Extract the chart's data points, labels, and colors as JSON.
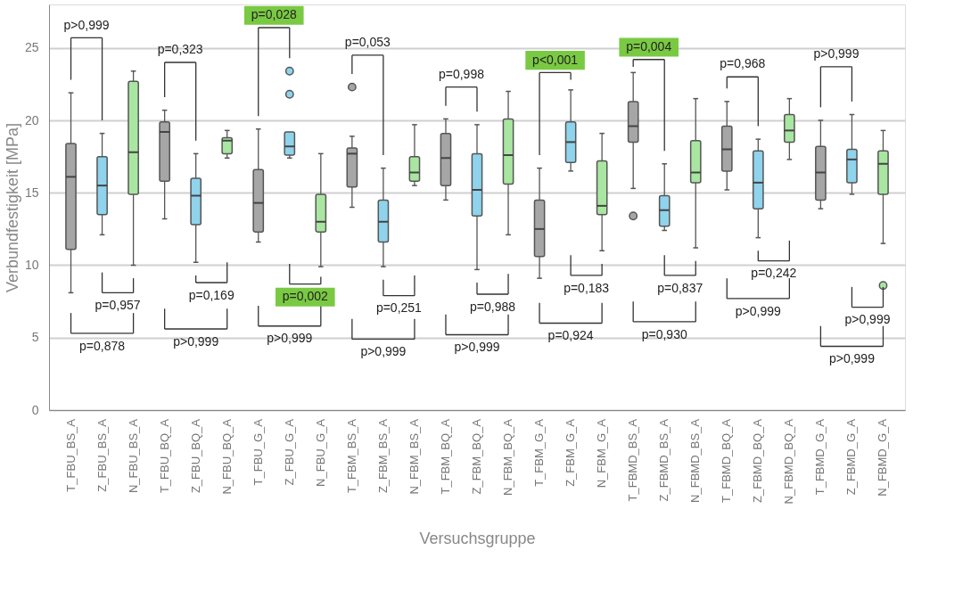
{
  "chart_data": {
    "type": "box",
    "xlabel": "Versuchsgruppe",
    "ylabel": "Verbundfestigkeit [MPa]",
    "categories": [
      "T_FBU_BS_A",
      "Z_FBU_BS_A",
      "N_FBU_BS_A",
      "T_FBU_BQ_A",
      "Z_FBU_BQ_A",
      "N_FBU_BQ_A",
      "T_FBU_G_A",
      "Z_FBU_G_A",
      "N_FBU_G_A",
      "T_FBM_BS_A",
      "Z_FBM_BS_A",
      "N_FBM_BS_A",
      "T_FBM_BQ_A",
      "Z_FBM_BQ_A",
      "N_FBM_BQ_A",
      "T_FBM_G_A",
      "Z_FBM_G_A",
      "N_FBM_G_A",
      "T_FBMD_BS_A",
      "Z_FBMD_BS_A",
      "N_FBMD_BS_A",
      "T_FBMD_BQ_A",
      "Z_FBMD_BQ_A",
      "N_FBMD_BQ_A",
      "T_FBMD_G_A",
      "Z_FBMD_G_A",
      "N_FBMD_G_A"
    ],
    "colors": [
      "#a6a6a6",
      "#8fd3ec",
      "#a9e6a1",
      "#a6a6a6",
      "#8fd3ec",
      "#a9e6a1",
      "#a6a6a6",
      "#8fd3ec",
      "#a9e6a1",
      "#a6a6a6",
      "#8fd3ec",
      "#a9e6a1",
      "#a6a6a6",
      "#8fd3ec",
      "#a9e6a1",
      "#a6a6a6",
      "#8fd3ec",
      "#a9e6a1",
      "#a6a6a6",
      "#8fd3ec",
      "#a9e6a1",
      "#a6a6a6",
      "#8fd3ec",
      "#a9e6a1",
      "#a6a6a6",
      "#8fd3ec",
      "#a9e6a1"
    ],
    "boxes": [
      {
        "low": 8.1,
        "q1": 11.1,
        "median": 16.1,
        "q3": 18.4,
        "high": 21.9
      },
      {
        "low": 12.1,
        "q1": 13.5,
        "median": 15.5,
        "q3": 17.5,
        "high": 19.1
      },
      {
        "low": 10.0,
        "q1": 14.9,
        "median": 17.8,
        "q3": 22.7,
        "high": 23.4
      },
      {
        "low": 13.2,
        "q1": 15.8,
        "median": 19.2,
        "q3": 19.9,
        "high": 20.7
      },
      {
        "low": 10.2,
        "q1": 12.8,
        "median": 14.8,
        "q3": 16.0,
        "high": 17.7
      },
      {
        "low": 17.4,
        "q1": 17.7,
        "median": 18.6,
        "q3": 18.8,
        "high": 19.3
      },
      {
        "low": 11.6,
        "q1": 12.3,
        "median": 14.3,
        "q3": 16.6,
        "high": 19.4
      },
      {
        "low": 17.4,
        "q1": 17.6,
        "median": 18.2,
        "q3": 19.2,
        "high": 19.2,
        "outliers": [
          21.8,
          23.4
        ]
      },
      {
        "low": 9.9,
        "q1": 12.3,
        "median": 13.0,
        "q3": 14.9,
        "high": 17.7
      },
      {
        "low": 14.0,
        "q1": 15.4,
        "median": 17.7,
        "q3": 18.1,
        "high": 18.9,
        "outliers": [
          22.3
        ]
      },
      {
        "low": 9.9,
        "q1": 11.6,
        "median": 13.0,
        "q3": 14.5,
        "high": 16.7
      },
      {
        "low": 15.5,
        "q1": 15.8,
        "median": 16.4,
        "q3": 17.5,
        "high": 19.7
      },
      {
        "low": 14.5,
        "q1": 15.5,
        "median": 17.4,
        "q3": 19.1,
        "high": 20.1
      },
      {
        "low": 9.7,
        "q1": 13.4,
        "median": 15.2,
        "q3": 17.7,
        "high": 19.7
      },
      {
        "low": 12.1,
        "q1": 15.6,
        "median": 17.6,
        "q3": 20.1,
        "high": 22.0
      },
      {
        "low": 9.1,
        "q1": 10.6,
        "median": 12.5,
        "q3": 14.5,
        "high": 16.7
      },
      {
        "low": 16.5,
        "q1": 17.1,
        "median": 18.5,
        "q3": 19.9,
        "high": 22.1
      },
      {
        "low": 11.0,
        "q1": 13.5,
        "median": 14.1,
        "q3": 17.2,
        "high": 19.1
      },
      {
        "low": 15.3,
        "q1": 18.5,
        "median": 19.6,
        "q3": 21.3,
        "high": 23.3,
        "outliers": [
          13.4
        ]
      },
      {
        "low": 12.4,
        "q1": 12.7,
        "median": 13.8,
        "q3": 14.8,
        "high": 17.0
      },
      {
        "low": 11.2,
        "q1": 15.7,
        "median": 16.4,
        "q3": 18.6,
        "high": 21.5
      },
      {
        "low": 15.2,
        "q1": 16.5,
        "median": 18.0,
        "q3": 19.6,
        "high": 21.3
      },
      {
        "low": 11.9,
        "q1": 13.9,
        "median": 15.7,
        "q3": 17.9,
        "high": 18.7
      },
      {
        "low": 17.3,
        "q1": 18.5,
        "median": 19.3,
        "q3": 20.4,
        "high": 21.5
      },
      {
        "low": 13.9,
        "q1": 14.5,
        "median": 16.4,
        "q3": 18.2,
        "high": 20.0
      },
      {
        "low": 14.9,
        "q1": 15.7,
        "median": 17.3,
        "q3": 18.0,
        "high": 20.4
      },
      {
        "low": 11.5,
        "q1": 14.9,
        "median": 17.0,
        "q3": 17.9,
        "high": 19.3,
        "outliers": [
          8.6
        ]
      }
    ],
    "ylim": [
      0,
      28
    ],
    "yticks": [
      0,
      5,
      10,
      15,
      20,
      25
    ],
    "grid": "y",
    "legend": false,
    "annotations": [
      "p>0,999",
      "p=0,323",
      "p=0,028",
      "p=0,957",
      "p=0,169",
      "p=0,002",
      "p=0,878",
      "p>0,999",
      "p>0,999",
      "p=0,053",
      "p=0,998",
      "p<0,001",
      "p=0,251",
      "p=0,988",
      "p=0,183",
      "p>0,999",
      "p>0,999",
      "p=0,924",
      "p=0,004",
      "p=0,968",
      "p>0,999",
      "p=0,837",
      "p=0,242",
      "p>0,999",
      "p=0,930",
      "p>0,999",
      "p>0,999"
    ]
  }
}
